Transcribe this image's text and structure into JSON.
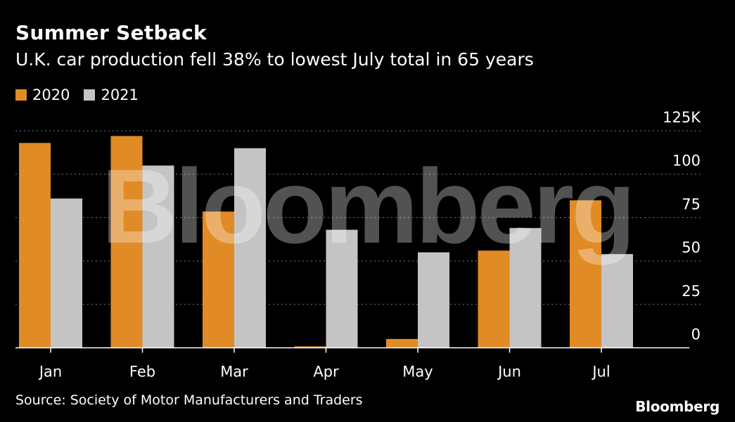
{
  "header": {
    "title": "Summer Setback",
    "subtitle": "U.K. car production fell 38% to lowest July total in 65 years"
  },
  "legend": [
    {
      "label": "2020",
      "color": "#e08b25"
    },
    {
      "label": "2021",
      "color": "#c4c4c4"
    }
  ],
  "footer": {
    "source": "Source: Society of Motor Manufacturers and Traders",
    "brand": "Bloomberg"
  },
  "watermark": "Bloomberg",
  "chart_data": {
    "type": "bar",
    "title": "Summer Setback",
    "subtitle": "U.K. car production fell 38% to lowest July total in 65 years",
    "categories": [
      "Jan",
      "Feb",
      "Mar",
      "Apr",
      "May",
      "Jun",
      "Jul"
    ],
    "series": [
      {
        "name": "2020",
        "color": "#e08b25",
        "values": [
          118,
          122,
          78.5,
          0.2,
          5.1,
          56,
          85
        ]
      },
      {
        "name": "2021",
        "color": "#c4c4c4",
        "values": [
          86,
          105,
          115,
          68,
          55,
          69,
          54
        ]
      }
    ],
    "ylim": [
      0,
      125
    ],
    "yticks": [
      0,
      25,
      50,
      75,
      100,
      125
    ],
    "ytick_labels": [
      "0",
      "25",
      "50",
      "75",
      "100",
      "125K"
    ],
    "xlabel": "",
    "ylabel": "",
    "y_axis_side": "right",
    "grid": true,
    "legend_position": "top-left"
  }
}
